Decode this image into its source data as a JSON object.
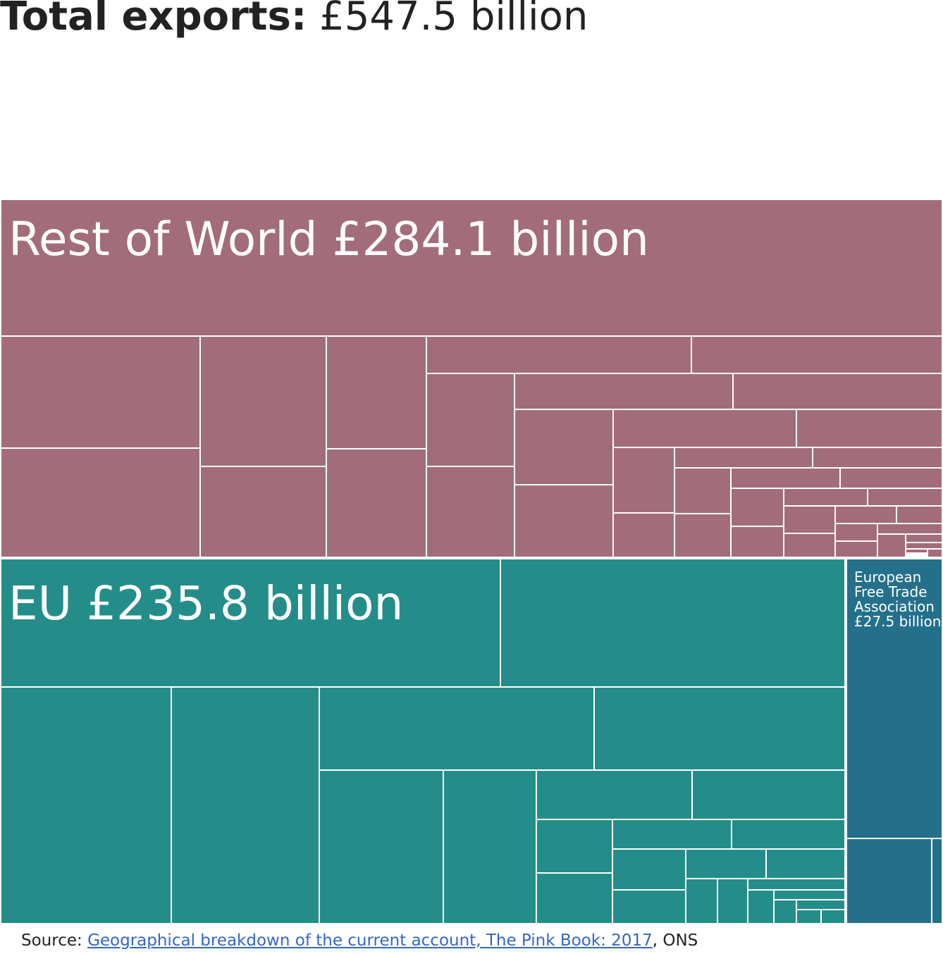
{
  "title": {
    "label": "Total exports:",
    "value": "£547.5 billion"
  },
  "chart_data": {
    "type": "treemap",
    "total_value": 547.5,
    "unit": "£ billion",
    "groups": [
      {
        "name": "Rest of World",
        "label": "Rest of World £284.1 billion",
        "value": 284.1,
        "color": "#a36c7a",
        "children_unlabelled": 41
      },
      {
        "name": "EU",
        "label": "EU £235.8 billion",
        "value": 235.8,
        "color": "#248d8a",
        "children_unlabelled": 27
      },
      {
        "name": "European Free Trade Association",
        "label_lines": [
          "European",
          "Free Trade",
          "Association",
          "£27.5 billion"
        ],
        "value": 27.5,
        "color": "#24708b",
        "children_unlabelled": 3
      }
    ]
  },
  "source": {
    "prefix": "Source: ",
    "link_text": "Geographical breakdown of the current account, The Pink Book: 2017",
    "suffix": ", ONS"
  }
}
